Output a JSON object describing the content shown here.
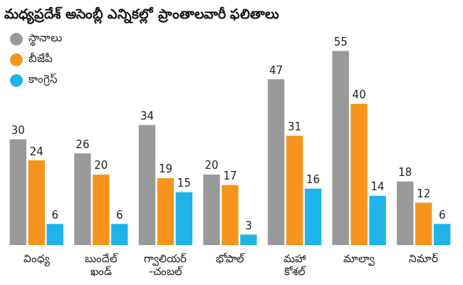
{
  "chart_data": {
    "type": "bar",
    "title": "మధ్యప్రదేశ్ అసెంబ్లీ ఎన్నికల్లో ప్రాంతాలవారీ ఫలితాలు",
    "categories": [
      "వింధ్య",
      "బుందేల్ ఖండ్",
      "గ్వాలియర్-చంబల్",
      "భోపాల్",
      "మహా కోశల్",
      "మాల్వా",
      "నిమార్"
    ],
    "series": [
      {
        "name": "స్థానాలు",
        "color": "#999999",
        "values": [
          30,
          26,
          34,
          20,
          47,
          55,
          18
        ]
      },
      {
        "name": "బీజేపీ",
        "color": "#f7941d",
        "values": [
          24,
          20,
          19,
          17,
          31,
          40,
          12
        ]
      },
      {
        "name": "కాంగ్రెస్",
        "color": "#1fb3e8",
        "values": [
          6,
          6,
          15,
          3,
          16,
          14,
          6
        ]
      }
    ],
    "ylim": [
      0,
      60
    ],
    "grid": false,
    "legend": "upper left",
    "data_labels": true,
    "tick_labels": "x"
  }
}
